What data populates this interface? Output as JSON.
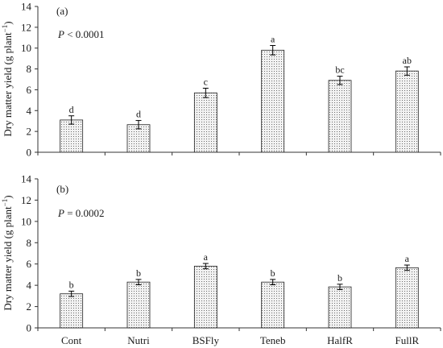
{
  "colors": {
    "bar_fill": "#f2f2f2",
    "bar_dot": "#6b6b6b",
    "bar_stroke": "#222222",
    "axis": "#333333"
  },
  "chart_data": [
    {
      "type": "bar",
      "panel_label": "(a)",
      "pvalue": {
        "p": "P",
        "rest": " < 0.0001"
      },
      "ylabel": {
        "main": "Dry matter yield (g plant",
        "sup": "−1",
        "close": ")"
      },
      "ylim": [
        0,
        14
      ],
      "yticks": [
        "0",
        "2",
        "4",
        "6",
        "8",
        "10",
        "12",
        "14"
      ],
      "categories": [
        "Cont",
        "Nutri",
        "BSFly",
        "Teneb",
        "HalfR",
        "FullR"
      ],
      "show_category_labels": false,
      "values": [
        3.1,
        2.65,
        5.7,
        9.8,
        6.9,
        7.8
      ],
      "errors": [
        0.4,
        0.4,
        0.45,
        0.45,
        0.4,
        0.4
      ],
      "letters": [
        "d",
        "d",
        "c",
        "a",
        "bc",
        "ab"
      ]
    },
    {
      "type": "bar",
      "panel_label": "(b)",
      "pvalue": {
        "p": "P",
        "rest": " = 0.0002"
      },
      "ylabel": {
        "main": "Dry matter yield (g plant",
        "sup": "−1",
        "close": ")"
      },
      "ylim": [
        0,
        14
      ],
      "yticks": [
        "0",
        "2",
        "4",
        "6",
        "8",
        "10",
        "12",
        "14"
      ],
      "categories": [
        "Cont",
        "Nutri",
        "BSFly",
        "Teneb",
        "HalfR",
        "FullR"
      ],
      "show_category_labels": true,
      "values": [
        3.2,
        4.3,
        5.8,
        4.3,
        3.85,
        5.65
      ],
      "errors": [
        0.25,
        0.25,
        0.25,
        0.25,
        0.25,
        0.25
      ],
      "letters": [
        "b",
        "b",
        "a",
        "b",
        "b",
        "a"
      ]
    }
  ]
}
